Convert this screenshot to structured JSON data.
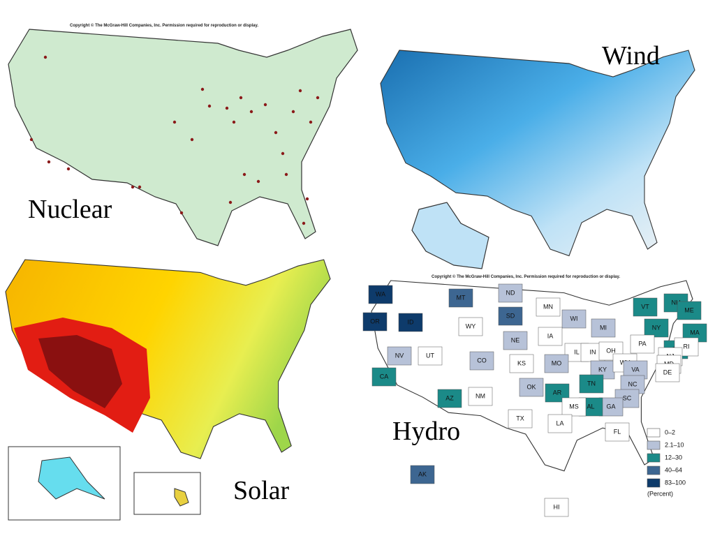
{
  "nuclear": {
    "label": "Nuclear",
    "copyright": "Copyright © The McGraw-Hill Companies, Inc. Permission required for reproduction or display."
  },
  "wind": {
    "label": "Wind"
  },
  "solar": {
    "label": "Solar"
  },
  "hydro": {
    "label": "Hydro",
    "copyright": "Copyright © The McGraw-Hill Companies, Inc. Permission required for reproduction or display.",
    "legend": [
      {
        "label": "0–2",
        "color": "#ffffff"
      },
      {
        "label": "2.1–10",
        "color": "#b7c2d8"
      },
      {
        "label": "12–30",
        "color": "#1b8a88"
      },
      {
        "label": "40–64",
        "color": "#3d6691"
      },
      {
        "label": "83–100",
        "color": "#0e3b6b"
      }
    ],
    "legend_unit": "(Percent)",
    "states": [
      {
        "abbr": "WA",
        "class": 4
      },
      {
        "abbr": "OR",
        "class": 4
      },
      {
        "abbr": "ID",
        "class": 4
      },
      {
        "abbr": "MT",
        "class": 3
      },
      {
        "abbr": "ND",
        "class": 1
      },
      {
        "abbr": "MN",
        "class": 0
      },
      {
        "abbr": "WY",
        "class": 0
      },
      {
        "abbr": "SD",
        "class": 3
      },
      {
        "abbr": "WI",
        "class": 1
      },
      {
        "abbr": "MI",
        "class": 1
      },
      {
        "abbr": "NY",
        "class": 2
      },
      {
        "abbr": "VT",
        "class": 2
      },
      {
        "abbr": "NH",
        "class": 2
      },
      {
        "abbr": "ME",
        "class": 2
      },
      {
        "abbr": "MA",
        "class": 2
      },
      {
        "abbr": "CT",
        "class": 2
      },
      {
        "abbr": "RI",
        "class": 0
      },
      {
        "abbr": "NV",
        "class": 1
      },
      {
        "abbr": "UT",
        "class": 0
      },
      {
        "abbr": "CO",
        "class": 1
      },
      {
        "abbr": "NE",
        "class": 1
      },
      {
        "abbr": "IA",
        "class": 0
      },
      {
        "abbr": "IL",
        "class": 0
      },
      {
        "abbr": "IN",
        "class": 0
      },
      {
        "abbr": "OH",
        "class": 0
      },
      {
        "abbr": "PA",
        "class": 0
      },
      {
        "abbr": "NJ",
        "class": 0
      },
      {
        "abbr": "MD",
        "class": 0
      },
      {
        "abbr": "DE",
        "class": 0
      },
      {
        "abbr": "KS",
        "class": 0
      },
      {
        "abbr": "MO",
        "class": 1
      },
      {
        "abbr": "KY",
        "class": 1
      },
      {
        "abbr": "WV",
        "class": 0
      },
      {
        "abbr": "VA",
        "class": 1
      },
      {
        "abbr": "CA",
        "class": 2
      },
      {
        "abbr": "AZ",
        "class": 2
      },
      {
        "abbr": "NM",
        "class": 0
      },
      {
        "abbr": "OK",
        "class": 1
      },
      {
        "abbr": "AR",
        "class": 2
      },
      {
        "abbr": "TN",
        "class": 2
      },
      {
        "abbr": "NC",
        "class": 1
      },
      {
        "abbr": "SC",
        "class": 1
      },
      {
        "abbr": "GA",
        "class": 1
      },
      {
        "abbr": "AL",
        "class": 2
      },
      {
        "abbr": "MS",
        "class": 0
      },
      {
        "abbr": "LA",
        "class": 0
      },
      {
        "abbr": "TX",
        "class": 0
      },
      {
        "abbr": "FL",
        "class": 0
      },
      {
        "abbr": "AK",
        "class": 3
      },
      {
        "abbr": "HI",
        "class": 0
      }
    ]
  }
}
